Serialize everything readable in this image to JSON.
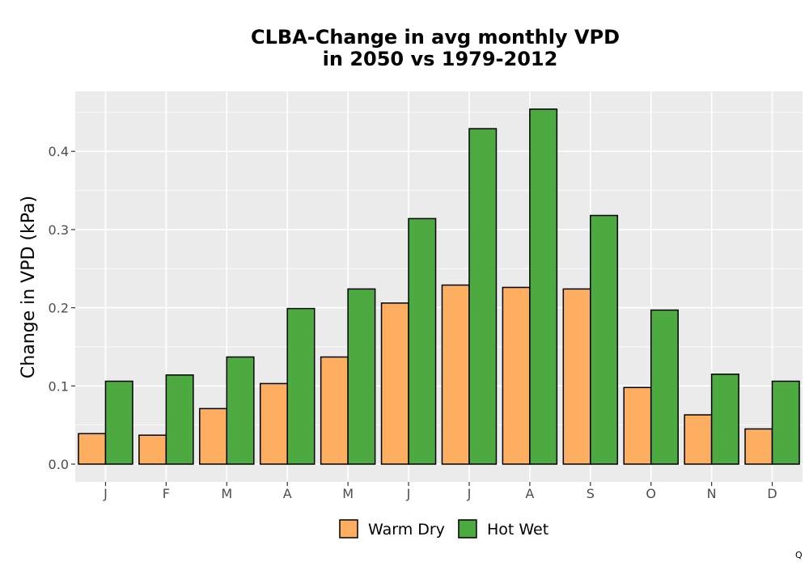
{
  "chart_data": {
    "type": "bar",
    "title_line1": "CLBA-Change in avg monthly VPD",
    "title_line2": "in 2050 vs 1979-2012",
    "xlabel": "",
    "ylabel": "Change in VPD (kPa)",
    "categories": [
      "J",
      "F",
      "M",
      "A",
      "M",
      "J",
      "J",
      "A",
      "S",
      "O",
      "N",
      "D"
    ],
    "series": [
      {
        "name": "Warm Dry",
        "color": "#FDAE61",
        "values": [
          0.039,
          0.037,
          0.071,
          0.103,
          0.137,
          0.206,
          0.229,
          0.226,
          0.224,
          0.098,
          0.063,
          0.045
        ]
      },
      {
        "name": "Hot Wet",
        "color": "#4DAA41",
        "values": [
          0.106,
          0.114,
          0.137,
          0.199,
          0.224,
          0.314,
          0.429,
          0.454,
          0.318,
          0.197,
          0.115,
          0.106
        ]
      }
    ],
    "ylim": [
      0,
      0.47
    ],
    "yticks": [
      0.0,
      0.1,
      0.2,
      0.3,
      0.4
    ],
    "ytick_labels": [
      "0.0",
      "0.1",
      "0.2",
      "0.3",
      "0.4"
    ],
    "grid": true,
    "panel_background": "#EBEBEB",
    "legend_position": "bottom",
    "corner_mark": "Q"
  }
}
